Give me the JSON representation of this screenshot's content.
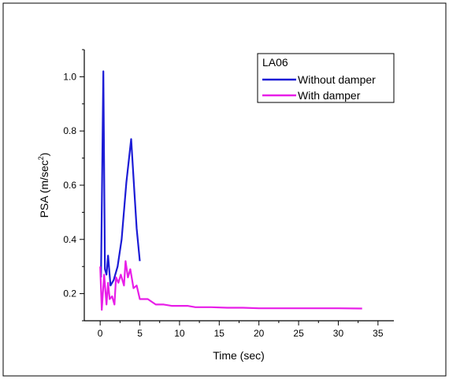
{
  "chart_data": {
    "type": "line",
    "title": "",
    "xlabel": "Time (sec)",
    "ylabel_main": "PSA (m/sec",
    "ylabel_sup": "2",
    "ylabel_close": ")",
    "xlim": [
      -2,
      37
    ],
    "ylim": [
      0.1,
      1.1
    ],
    "xticks": [
      0,
      5,
      10,
      15,
      20,
      25,
      30,
      35
    ],
    "xtick_labels": [
      "0",
      "5",
      "10",
      "15",
      "20",
      "25",
      "30",
      "35"
    ],
    "yticks": [
      0.2,
      0.4,
      0.6,
      0.8,
      1.0
    ],
    "ytick_labels": [
      "0.2",
      "0.4",
      "0.6",
      "0.8",
      "1.0"
    ],
    "legend": {
      "title": "LA06",
      "placement": "top-right"
    },
    "grid": false,
    "series": [
      {
        "name": "Without damper",
        "color": "#1c1cd6",
        "x": [
          0.1,
          0.4,
          0.6,
          0.8,
          1.0,
          1.3,
          1.7,
          2.2,
          2.7,
          3.3,
          3.9,
          4.3,
          4.6,
          5.0
        ],
        "y": [
          0.26,
          1.02,
          0.29,
          0.27,
          0.34,
          0.23,
          0.25,
          0.3,
          0.4,
          0.61,
          0.77,
          0.58,
          0.44,
          0.32
        ]
      },
      {
        "name": "With damper",
        "color": "#e81ee8",
        "x": [
          0.0,
          0.2,
          0.5,
          0.8,
          1.0,
          1.2,
          1.5,
          1.8,
          2.0,
          2.3,
          2.6,
          3.0,
          3.2,
          3.5,
          3.8,
          4.2,
          4.6,
          5.0,
          6.0,
          7.0,
          8.0,
          9.0,
          10.0,
          11.0,
          12.0,
          14.0,
          16.0,
          18.0,
          20.0,
          25.0,
          30.0,
          33.0
        ],
        "y": [
          0.3,
          0.14,
          0.27,
          0.16,
          0.24,
          0.18,
          0.19,
          0.16,
          0.26,
          0.24,
          0.27,
          0.23,
          0.32,
          0.26,
          0.29,
          0.22,
          0.23,
          0.18,
          0.18,
          0.16,
          0.16,
          0.155,
          0.155,
          0.155,
          0.15,
          0.15,
          0.148,
          0.148,
          0.146,
          0.146,
          0.146,
          0.145
        ]
      }
    ]
  }
}
